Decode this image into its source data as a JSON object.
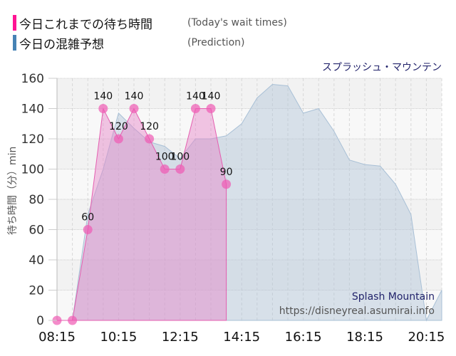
{
  "legend": {
    "today": {
      "label_jp": "今日これまでの待ち時間",
      "label_en": "(Today's wait times)",
      "color": "#ff1493"
    },
    "prediction": {
      "label_jp": "今日の混雑予想",
      "label_en": "(Prediction)",
      "color": "#4682b4"
    }
  },
  "attraction_jp": "スプラッシュ・マウンテン",
  "watermark": {
    "name": "Splash Mountain",
    "url": "https://disneyreal.asumirai.info"
  },
  "chart_data": {
    "type": "area",
    "title": "スプラッシュ・マウンテン",
    "xlabel": "",
    "ylabel": "待ち時間（分）min",
    "ylim": [
      0,
      160
    ],
    "yticks": [
      0,
      20,
      40,
      60,
      80,
      100,
      120,
      140,
      160
    ],
    "xtick_labels": [
      "08:15",
      "10:15",
      "12:15",
      "14:15",
      "16:15",
      "18:15",
      "20:15"
    ],
    "grid": true,
    "legend_position": "top-left",
    "series": [
      {
        "name": "今日これまでの待ち時間 (Today's wait times)",
        "color": "#ff69b4",
        "x": [
          "08:15",
          "08:45",
          "09:15",
          "09:45",
          "10:15",
          "10:45",
          "11:15",
          "11:45",
          "12:15",
          "12:45",
          "13:15",
          "13:45"
        ],
        "values": [
          0,
          0,
          60,
          140,
          120,
          140,
          120,
          100,
          100,
          140,
          140,
          90
        ],
        "data_labels": [
          "",
          "",
          "60",
          "140",
          "120",
          "140",
          "120",
          "100",
          "100",
          "140",
          "140",
          "90"
        ]
      },
      {
        "name": "今日の混雑予想 (Prediction)",
        "color": "#b0c4d8",
        "x": [
          "08:15",
          "08:45",
          "09:15",
          "09:45",
          "10:15",
          "10:45",
          "11:15",
          "11:45",
          "12:15",
          "12:45",
          "13:15",
          "13:45",
          "14:15",
          "14:45",
          "15:15",
          "15:45",
          "16:15",
          "16:45",
          "17:15",
          "17:45",
          "18:15",
          "18:45",
          "19:15",
          "19:45",
          "20:15",
          "20:45"
        ],
        "values": [
          0,
          0,
          70,
          100,
          137,
          127,
          118,
          115,
          107,
          120,
          120,
          122,
          130,
          147,
          156,
          155,
          137,
          140,
          125,
          106,
          103,
          102,
          90,
          70,
          0,
          20
        ]
      }
    ]
  }
}
